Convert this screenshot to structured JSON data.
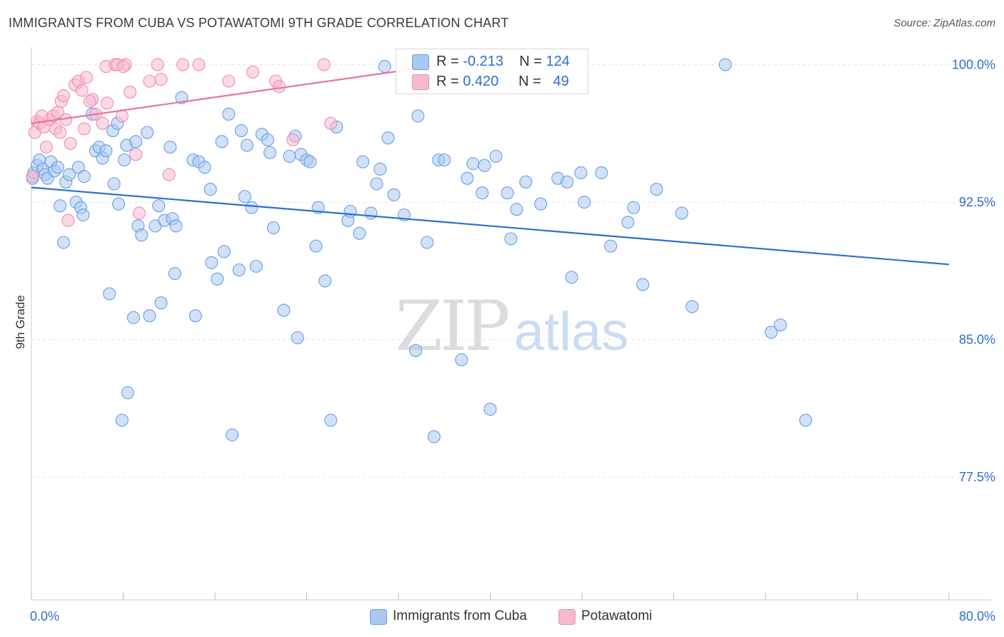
{
  "title": "IMMIGRANTS FROM CUBA VS POTAWATOMI 9TH GRADE CORRELATION CHART",
  "source": "Source: ZipAtlas.com",
  "watermark": {
    "zip": "ZIP",
    "atlas": "atlas"
  },
  "legend": {
    "rows": [
      {
        "r_label": "R = ",
        "r_value": "-0.213",
        "n_label": "N = ",
        "n_value": "124",
        "color": "#a9c8f2"
      },
      {
        "r_label": "R = ",
        "r_value": "0.420",
        "n_label": "N = ",
        "n_value": "49",
        "color": "#f7b9cf"
      }
    ]
  },
  "bottom_legend": [
    {
      "label": "Immigrants from Cuba",
      "color": "#a9c8f2"
    },
    {
      "label": "Potawatomi",
      "color": "#f7b9cf"
    }
  ],
  "chart_data": {
    "type": "scatter",
    "title": "IMMIGRANTS FROM CUBA VS POTAWATOMI 9TH GRADE CORRELATION CHART",
    "xlabel": "",
    "ylabel": "9th Grade",
    "xlim": [
      0,
      80
    ],
    "ylim": [
      70.8,
      100.8
    ],
    "x_tick_labels": [
      "0.0%",
      "80.0%"
    ],
    "y_ticks": [
      100.0,
      92.5,
      85.0,
      77.5
    ],
    "y_tick_labels": [
      "100.0%",
      "92.5%",
      "85.0%",
      "77.5%"
    ],
    "grid": true,
    "legend_position": "top-center",
    "series": [
      {
        "name": "Immigrants from Cuba",
        "color": "#6b9fe3",
        "fill": "#a9c8f2",
        "line_color": "#2d6fcf",
        "trend": {
          "x": [
            0,
            80
          ],
          "y": [
            93.3,
            89.1
          ]
        },
        "points": [
          [
            0.1,
            93.8
          ],
          [
            0.2,
            94.1
          ],
          [
            0.5,
            94.5
          ],
          [
            0.7,
            94.8
          ],
          [
            1.0,
            94.3
          ],
          [
            1.2,
            94.0
          ],
          [
            1.4,
            93.8
          ],
          [
            1.7,
            94.7
          ],
          [
            2.0,
            94.2
          ],
          [
            2.3,
            94.4
          ],
          [
            2.5,
            92.3
          ],
          [
            2.8,
            90.3
          ],
          [
            3.0,
            93.6
          ],
          [
            3.3,
            94.0
          ],
          [
            3.9,
            92.5
          ],
          [
            4.1,
            94.4
          ],
          [
            4.3,
            92.2
          ],
          [
            4.6,
            93.9
          ],
          [
            4.5,
            91.8
          ],
          [
            5.3,
            97.3
          ],
          [
            5.6,
            95.3
          ],
          [
            5.9,
            95.5
          ],
          [
            6.2,
            94.9
          ],
          [
            6.5,
            95.3
          ],
          [
            6.8,
            87.5
          ],
          [
            7.1,
            96.4
          ],
          [
            7.2,
            93.5
          ],
          [
            7.5,
            96.8
          ],
          [
            7.6,
            92.4
          ],
          [
            7.9,
            80.6
          ],
          [
            8.1,
            94.8
          ],
          [
            8.3,
            95.6
          ],
          [
            8.4,
            82.1
          ],
          [
            8.9,
            86.2
          ],
          [
            9.1,
            95.8
          ],
          [
            9.3,
            91.2
          ],
          [
            9.6,
            90.7
          ],
          [
            10.1,
            96.3
          ],
          [
            10.3,
            86.3
          ],
          [
            10.8,
            91.2
          ],
          [
            11.1,
            92.3
          ],
          [
            11.3,
            87.0
          ],
          [
            11.6,
            91.5
          ],
          [
            12.1,
            95.5
          ],
          [
            12.3,
            91.6
          ],
          [
            12.5,
            88.6
          ],
          [
            12.6,
            91.2
          ],
          [
            13.1,
            98.2
          ],
          [
            14.1,
            94.8
          ],
          [
            14.3,
            86.3
          ],
          [
            14.6,
            94.7
          ],
          [
            15.1,
            94.4
          ],
          [
            15.6,
            93.2
          ],
          [
            15.7,
            89.2
          ],
          [
            16.2,
            88.3
          ],
          [
            16.6,
            95.8
          ],
          [
            16.8,
            89.8
          ],
          [
            17.2,
            97.3
          ],
          [
            17.5,
            79.8
          ],
          [
            18.1,
            88.8
          ],
          [
            18.3,
            96.4
          ],
          [
            18.6,
            92.8
          ],
          [
            18.8,
            95.6
          ],
          [
            19.2,
            92.2
          ],
          [
            19.6,
            89.0
          ],
          [
            20.1,
            96.2
          ],
          [
            20.6,
            95.9
          ],
          [
            20.8,
            95.2
          ],
          [
            21.1,
            91.1
          ],
          [
            22.0,
            86.6
          ],
          [
            22.5,
            95.0
          ],
          [
            23.0,
            96.1
          ],
          [
            23.2,
            85.1
          ],
          [
            23.5,
            95.1
          ],
          [
            24.0,
            94.8
          ],
          [
            24.3,
            94.7
          ],
          [
            24.8,
            90.1
          ],
          [
            25.0,
            92.2
          ],
          [
            25.6,
            88.2
          ],
          [
            26.1,
            80.6
          ],
          [
            26.6,
            96.6
          ],
          [
            27.6,
            91.5
          ],
          [
            27.8,
            92.0
          ],
          [
            28.6,
            90.8
          ],
          [
            28.9,
            94.7
          ],
          [
            29.6,
            91.9
          ],
          [
            30.1,
            93.5
          ],
          [
            30.4,
            94.3
          ],
          [
            30.8,
            99.9
          ],
          [
            31.1,
            96.0
          ],
          [
            31.6,
            92.9
          ],
          [
            32.5,
            91.8
          ],
          [
            33.5,
            84.4
          ],
          [
            33.7,
            97.2
          ],
          [
            34.5,
            90.3
          ],
          [
            35.1,
            79.7
          ],
          [
            35.5,
            94.8
          ],
          [
            36.0,
            94.8
          ],
          [
            37.5,
            83.9
          ],
          [
            38.0,
            93.8
          ],
          [
            38.5,
            94.6
          ],
          [
            39.3,
            93.0
          ],
          [
            39.5,
            94.5
          ],
          [
            40.0,
            81.2
          ],
          [
            40.5,
            95.0
          ],
          [
            41.5,
            93.0
          ],
          [
            41.8,
            90.5
          ],
          [
            42.3,
            92.1
          ],
          [
            43.1,
            93.6
          ],
          [
            44.4,
            92.4
          ],
          [
            45.9,
            93.8
          ],
          [
            46.7,
            93.6
          ],
          [
            47.1,
            88.4
          ],
          [
            47.9,
            94.1
          ],
          [
            48.2,
            92.5
          ],
          [
            49.7,
            94.1
          ],
          [
            50.5,
            90.1
          ],
          [
            52.0,
            91.4
          ],
          [
            52.5,
            92.2
          ],
          [
            53.3,
            88.0
          ],
          [
            54.5,
            93.2
          ],
          [
            56.7,
            91.9
          ],
          [
            57.6,
            86.8
          ],
          [
            60.5,
            100.0
          ],
          [
            64.5,
            85.4
          ],
          [
            65.3,
            85.8
          ],
          [
            67.5,
            80.6
          ]
        ]
      },
      {
        "name": "Potawatomi",
        "color": "#ef8db0",
        "fill": "#f7b9cf",
        "line_color": "#e8739c",
        "trend": {
          "x": [
            0,
            36
          ],
          "y": [
            96.8,
            100.0
          ]
        },
        "points": [
          [
            0.1,
            93.9
          ],
          [
            0.3,
            96.3
          ],
          [
            0.5,
            96.9
          ],
          [
            0.7,
            96.8
          ],
          [
            1.1,
            96.6
          ],
          [
            1.3,
            95.5
          ],
          [
            1.6,
            97.0
          ],
          [
            1.9,
            97.2
          ],
          [
            2.1,
            96.5
          ],
          [
            2.3,
            97.4
          ],
          [
            2.6,
            98.0
          ],
          [
            2.8,
            98.3
          ],
          [
            3.0,
            97.0
          ],
          [
            3.4,
            95.7
          ],
          [
            3.8,
            98.9
          ],
          [
            4.1,
            99.1
          ],
          [
            4.4,
            98.6
          ],
          [
            4.6,
            96.5
          ],
          [
            4.8,
            99.3
          ],
          [
            5.3,
            98.1
          ],
          [
            5.6,
            97.3
          ],
          [
            6.2,
            96.8
          ],
          [
            6.6,
            97.9
          ],
          [
            6.5,
            99.9
          ],
          [
            7.3,
            100.0
          ],
          [
            7.9,
            97.2
          ],
          [
            8.2,
            100.0
          ],
          [
            8.6,
            98.5
          ],
          [
            9.1,
            95.1
          ],
          [
            9.4,
            91.9
          ],
          [
            10.3,
            99.1
          ],
          [
            11.3,
            99.2
          ],
          [
            12.0,
            94.0
          ],
          [
            13.2,
            100.0
          ],
          [
            14.6,
            100.0
          ],
          [
            17.2,
            99.1
          ],
          [
            19.3,
            99.6
          ],
          [
            21.3,
            99.1
          ],
          [
            22.8,
            95.9
          ],
          [
            25.5,
            100.0
          ],
          [
            26.1,
            96.8
          ],
          [
            5.1,
            98.0
          ],
          [
            3.2,
            91.5
          ],
          [
            11.0,
            100.0
          ],
          [
            7.5,
            100.0
          ],
          [
            0.9,
            97.2
          ],
          [
            2.5,
            96.3
          ],
          [
            21.6,
            98.8
          ],
          [
            8.0,
            99.9
          ]
        ]
      }
    ]
  }
}
